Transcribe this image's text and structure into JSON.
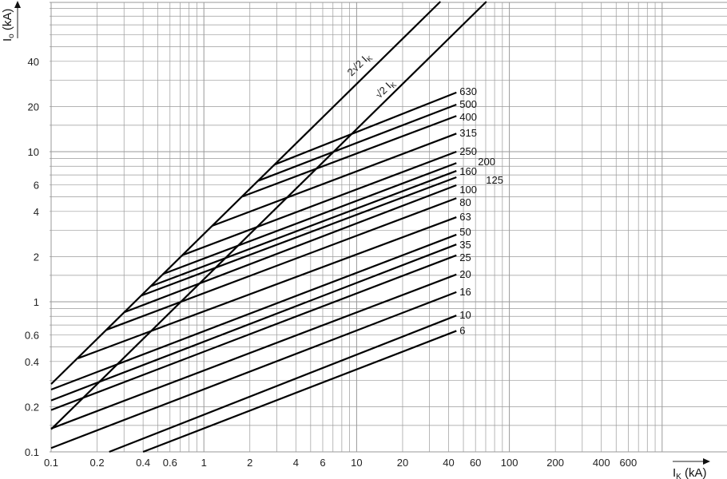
{
  "chart_data": {
    "type": "line",
    "xlabel": "I",
    "xlabel_sub": "K",
    "xlabel_unit": "(kA)",
    "ylabel": "I",
    "ylabel_sub": "o",
    "ylabel_unit": "(kA)",
    "x_scale": "log",
    "y_scale": "log",
    "xlim": [
      0.1,
      1000
    ],
    "ylim": [
      0.1,
      100
    ],
    "grid": true,
    "x_ticks": [
      "0.1",
      "0.2",
      "0.4",
      "0.6",
      "1",
      "2",
      "4",
      "6",
      "10",
      "20",
      "40",
      "60",
      "100",
      "200",
      "400",
      "600"
    ],
    "y_ticks": [
      "0.1",
      "0.2",
      "0.4",
      "0.6",
      "1",
      "2",
      "4",
      "6",
      "10",
      "20",
      "40"
    ],
    "reference_lines": [
      {
        "label": "2√2 I",
        "label_sub": "K",
        "factor": 2.828
      },
      {
        "label": "√2 I",
        "label_sub": "K",
        "factor": 1.414
      }
    ],
    "series": [
      {
        "name": "630",
        "points": [
          [
            2.9,
            8.2
          ],
          [
            45,
            24.8
          ]
        ]
      },
      {
        "name": "500",
        "points": [
          [
            2.27,
            6.4
          ],
          [
            45,
            20.6
          ]
        ]
      },
      {
        "name": "400",
        "points": [
          [
            1.76,
            5.0
          ],
          [
            45,
            17.3
          ]
        ]
      },
      {
        "name": "315",
        "points": [
          [
            1.13,
            3.2
          ],
          [
            45,
            13.2
          ]
        ]
      },
      {
        "name": "250",
        "points": [
          [
            0.72,
            2.04
          ],
          [
            45,
            10.0
          ]
        ]
      },
      {
        "name": "200",
        "points": [
          [
            0.54,
            1.53
          ],
          [
            45,
            8.4
          ]
        ]
      },
      {
        "name": "160",
        "points": [
          [
            0.45,
            1.27
          ],
          [
            45,
            7.45
          ]
        ]
      },
      {
        "name": "125",
        "points": [
          [
            0.39,
            1.1
          ],
          [
            45,
            6.76
          ]
        ]
      },
      {
        "name": "100",
        "points": [
          [
            0.3,
            0.85
          ],
          [
            45,
            5.98
          ]
        ]
      },
      {
        "name": "80",
        "points": [
          [
            0.23,
            0.65
          ],
          [
            45,
            4.9
          ]
        ]
      },
      {
        "name": "63",
        "points": [
          [
            0.15,
            0.42
          ],
          [
            45,
            3.66
          ]
        ]
      },
      {
        "name": "50",
        "points": [
          [
            0.1,
            0.26
          ],
          [
            45,
            2.8
          ]
        ]
      },
      {
        "name": "35",
        "points": [
          [
            0.1,
            0.22
          ],
          [
            45,
            2.41
          ]
        ]
      },
      {
        "name": "25",
        "points": [
          [
            0.1,
            0.19
          ],
          [
            45,
            2.04
          ]
        ]
      },
      {
        "name": "20",
        "points": [
          [
            0.1,
            0.143
          ],
          [
            45,
            1.52
          ]
        ]
      },
      {
        "name": "16",
        "points": [
          [
            0.1,
            0.106
          ],
          [
            45,
            1.16
          ]
        ]
      },
      {
        "name": "10",
        "points": [
          [
            0.24,
            0.1
          ],
          [
            45,
            0.81
          ]
        ]
      },
      {
        "name": "6",
        "points": [
          [
            0.4,
            0.1
          ],
          [
            45,
            0.64
          ]
        ]
      }
    ],
    "colors": {
      "grid": "#9a9a9a",
      "line": "#000000"
    }
  }
}
